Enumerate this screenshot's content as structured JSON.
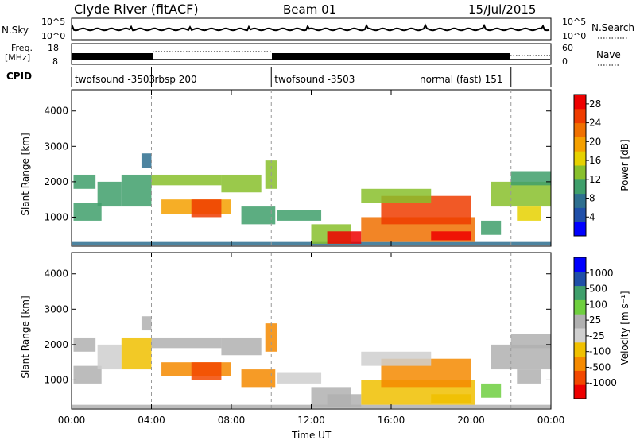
{
  "header": {
    "title": "Clyde River (fitACF)",
    "beam": "Beam 01",
    "date": "15/Jul/2015"
  },
  "summary": {
    "nsky_label": "N.Sky",
    "nsky_ticks": [
      "10^5",
      "10^0"
    ],
    "nsearch_label": "N.Search",
    "freq_label_top": "Freq.",
    "freq_label_unit": "[MHz]",
    "freq_ticks": [
      "18",
      "8"
    ],
    "nave_ticks": [
      "60",
      "0"
    ],
    "nave_label": "Nave",
    "cpid_label": "CPID",
    "cpid_segments": [
      {
        "name": "twofsound -3503",
        "start": 0.0,
        "end": 4.0
      },
      {
        "name": "rbsp 200",
        "start": 4.0,
        "end": 10.0
      },
      {
        "name": "twofsound -3503",
        "start": 10.0,
        "end": 22.0
      },
      {
        "name": "normal (fast) 151",
        "start": 22.0,
        "end": 24.0
      }
    ]
  },
  "colors": {
    "power": [
      "#0000ff",
      "#1f4fa8",
      "#2e6f8f",
      "#3f9f6b",
      "#88c02c",
      "#e6d100",
      "#f5a000",
      "#f07000",
      "#ef3c00",
      "#ee0000"
    ],
    "velocity": [
      "#ee0000",
      "#f24800",
      "#f58a00",
      "#f0c000",
      "#cfcfcf",
      "#b0b0b0",
      "#6fcf3f",
      "#3f9f6b",
      "#1f4fa8",
      "#0000ff"
    ]
  },
  "chart_data": [
    {
      "type": "heatmap",
      "title": "",
      "xlabel": "",
      "ylabel": "Slant Range [km]",
      "xlim": [
        0,
        24
      ],
      "ylim": [
        180,
        4600
      ],
      "x_ticks": [
        "00:00",
        "04:00",
        "08:00",
        "12:00",
        "16:00",
        "20:00",
        "00:00"
      ],
      "y_ticks": [
        1000,
        2000,
        3000,
        4000
      ],
      "colorbar_label": "Power [dB]",
      "colorbar_ticks": [
        "4",
        "8",
        "12",
        "16",
        "20",
        "24",
        "28"
      ],
      "colorbar_range": [
        0,
        30
      ],
      "regions": [
        {
          "t0": 0.0,
          "t1": 24.0,
          "r0": 200,
          "r1": 300,
          "value": 6
        },
        {
          "t0": 0.1,
          "t1": 1.2,
          "r0": 1800,
          "r1": 2200,
          "value": 11
        },
        {
          "t0": 0.1,
          "t1": 1.5,
          "r0": 900,
          "r1": 1400,
          "value": 10
        },
        {
          "t0": 1.3,
          "t1": 2.5,
          "r0": 1300,
          "r1": 2000,
          "value": 10
        },
        {
          "t0": 2.5,
          "t1": 4.0,
          "r0": 1300,
          "r1": 2200,
          "value": 11
        },
        {
          "t0": 3.5,
          "t1": 4.0,
          "r0": 2400,
          "r1": 2800,
          "value": 8
        },
        {
          "t0": 4.0,
          "t1": 7.5,
          "r0": 1900,
          "r1": 2200,
          "value": 12
        },
        {
          "t0": 4.5,
          "t1": 8.0,
          "r0": 1100,
          "r1": 1500,
          "value": 18
        },
        {
          "t0": 6.0,
          "t1": 7.5,
          "r0": 1000,
          "r1": 1500,
          "value": 24
        },
        {
          "t0": 7.5,
          "t1": 9.5,
          "r0": 1700,
          "r1": 2200,
          "value": 12
        },
        {
          "t0": 8.5,
          "t1": 10.2,
          "r0": 800,
          "r1": 1300,
          "value": 11
        },
        {
          "t0": 9.7,
          "t1": 10.3,
          "r0": 1800,
          "r1": 2600,
          "value": 13
        },
        {
          "t0": 10.3,
          "t1": 12.5,
          "r0": 900,
          "r1": 1200,
          "value": 11
        },
        {
          "t0": 12.0,
          "t1": 14.0,
          "r0": 250,
          "r1": 800,
          "value": 14
        },
        {
          "t0": 12.8,
          "t1": 14.5,
          "r0": 250,
          "r1": 600,
          "value": 28
        },
        {
          "t0": 14.5,
          "t1": 20.2,
          "r0": 300,
          "r1": 1000,
          "value": 22
        },
        {
          "t0": 15.5,
          "t1": 20.0,
          "r0": 800,
          "r1": 1600,
          "value": 25
        },
        {
          "t0": 14.5,
          "t1": 18.0,
          "r0": 1400,
          "r1": 1800,
          "value": 12
        },
        {
          "t0": 18.0,
          "t1": 20.0,
          "r0": 350,
          "r1": 600,
          "value": 28
        },
        {
          "t0": 20.5,
          "t1": 21.5,
          "r0": 500,
          "r1": 900,
          "value": 9
        },
        {
          "t0": 21.0,
          "t1": 24.0,
          "r0": 1300,
          "r1": 2000,
          "value": 13
        },
        {
          "t0": 22.0,
          "t1": 24.0,
          "r0": 1900,
          "r1": 2300,
          "value": 10
        },
        {
          "t0": 22.3,
          "t1": 23.5,
          "r0": 900,
          "r1": 1300,
          "value": 15
        }
      ]
    },
    {
      "type": "heatmap",
      "title": "",
      "xlabel": "Time UT",
      "ylabel": "Slant Range [km]",
      "xlim": [
        0,
        24
      ],
      "ylim": [
        180,
        4600
      ],
      "x_ticks": [
        "00:00",
        "04:00",
        "08:00",
        "12:00",
        "16:00",
        "20:00",
        "00:00"
      ],
      "y_ticks": [
        1000,
        2000,
        3000,
        4000
      ],
      "colorbar_label": "Velocity [m s⁻¹]",
      "colorbar_ticks": [
        "1000",
        "500",
        "100",
        "25",
        "-25",
        "-100",
        "-500",
        "-1000"
      ],
      "colorbar_range": [
        -1000,
        1000
      ],
      "regions": [
        {
          "t0": 0.0,
          "t1": 24.0,
          "r0": 200,
          "r1": 300,
          "value": 60
        },
        {
          "t0": 0.1,
          "t1": 1.2,
          "r0": 1800,
          "r1": 2200,
          "value": 0
        },
        {
          "t0": 0.1,
          "t1": 1.5,
          "r0": 900,
          "r1": 1400,
          "value": 80
        },
        {
          "t0": 1.3,
          "t1": 2.5,
          "r0": 1300,
          "r1": 2000,
          "value": -150
        },
        {
          "t0": 2.5,
          "t1": 4.0,
          "r0": 1300,
          "r1": 2200,
          "value": -400
        },
        {
          "t0": 3.5,
          "t1": 4.0,
          "r0": 2400,
          "r1": 2800,
          "value": 0
        },
        {
          "t0": 4.0,
          "t1": 7.5,
          "r0": 1900,
          "r1": 2200,
          "value": 0
        },
        {
          "t0": 4.5,
          "t1": 8.0,
          "r0": 1100,
          "r1": 1500,
          "value": -500
        },
        {
          "t0": 6.0,
          "t1": 7.5,
          "r0": 1000,
          "r1": 1500,
          "value": -800
        },
        {
          "t0": 7.5,
          "t1": 9.5,
          "r0": 1700,
          "r1": 2200,
          "value": 0
        },
        {
          "t0": 8.5,
          "t1": 10.2,
          "r0": 800,
          "r1": 1300,
          "value": -600
        },
        {
          "t0": 9.7,
          "t1": 10.3,
          "r0": 1800,
          "r1": 2600,
          "value": -500
        },
        {
          "t0": 10.3,
          "t1": 12.5,
          "r0": 900,
          "r1": 1200,
          "value": -200
        },
        {
          "t0": 12.0,
          "t1": 14.0,
          "r0": 250,
          "r1": 800,
          "value": 0
        },
        {
          "t0": 12.8,
          "t1": 14.5,
          "r0": 250,
          "r1": 600,
          "value": 40
        },
        {
          "t0": 14.5,
          "t1": 20.2,
          "r0": 300,
          "r1": 1000,
          "value": -300
        },
        {
          "t0": 15.5,
          "t1": 20.0,
          "r0": 800,
          "r1": 1600,
          "value": -500
        },
        {
          "t0": 14.5,
          "t1": 18.0,
          "r0": 1400,
          "r1": 1800,
          "value": -150
        },
        {
          "t0": 18.0,
          "t1": 20.0,
          "r0": 350,
          "r1": 600,
          "value": -300
        },
        {
          "t0": 20.5,
          "t1": 21.5,
          "r0": 500,
          "r1": 900,
          "value": 200
        },
        {
          "t0": 21.0,
          "t1": 24.0,
          "r0": 1300,
          "r1": 2000,
          "value": 0
        },
        {
          "t0": 22.0,
          "t1": 24.0,
          "r0": 1900,
          "r1": 2300,
          "value": 0
        },
        {
          "t0": 22.3,
          "t1": 23.5,
          "r0": 900,
          "r1": 1300,
          "value": 150
        }
      ]
    }
  ]
}
